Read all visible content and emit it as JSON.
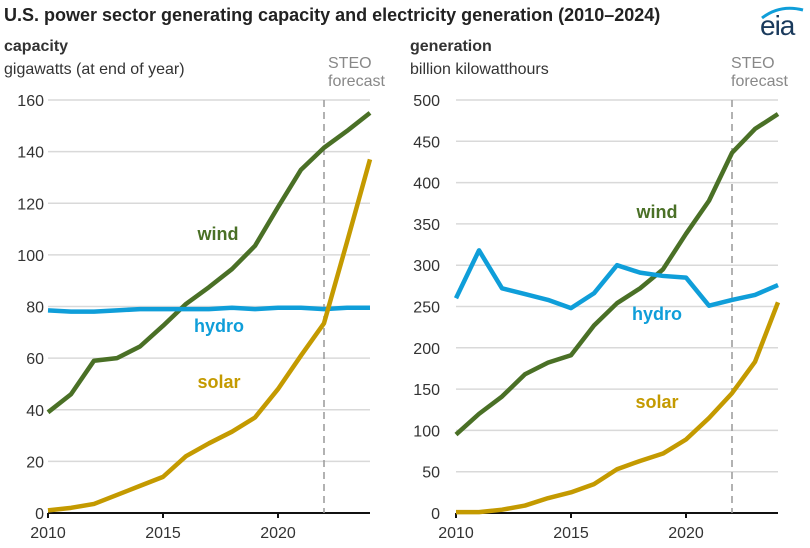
{
  "title": "U.S. power sector generating capacity and electricity generation (2010–2024)",
  "logo": "eia",
  "colors": {
    "wind": "#4a7026",
    "hydro": "#0f9ed9",
    "solar": "#c49a00",
    "grid": "#d9d9d9",
    "forecast": "#999999"
  },
  "chart_data": [
    {
      "type": "line",
      "heading": "capacity",
      "unit_label": "gigawatts (at end of year)",
      "forecast_label": [
        "STEO",
        "forecast"
      ],
      "forecast_start": 2022,
      "x": [
        2010,
        2011,
        2012,
        2013,
        2014,
        2015,
        2016,
        2017,
        2018,
        2019,
        2020,
        2021,
        2022,
        2023,
        2024
      ],
      "xticks": [
        "2010",
        "2015",
        "2020"
      ],
      "yticks": [
        "0",
        "20",
        "40",
        "60",
        "80",
        "100",
        "120",
        "140",
        "160"
      ],
      "ylim": [
        0,
        160
      ],
      "grid": true,
      "series": [
        {
          "name": "wind",
          "values": [
            39,
            46,
            59,
            60,
            64.5,
            72.5,
            81,
            87.5,
            94.5,
            103.5,
            118.5,
            133,
            141.5,
            148,
            155
          ]
        },
        {
          "name": "hydro",
          "values": [
            78.5,
            78,
            78,
            78.5,
            79,
            79,
            79,
            79,
            79.5,
            79,
            79.5,
            79.5,
            79,
            79.5,
            79.5
          ]
        },
        {
          "name": "solar",
          "values": [
            1,
            2,
            3.5,
            7,
            10.5,
            14,
            22,
            27,
            31.5,
            37,
            48,
            61,
            73.5,
            105,
            137
          ]
        }
      ]
    },
    {
      "type": "line",
      "heading": "generation",
      "unit_label": "billion kilowatthours",
      "forecast_label": [
        "STEO",
        "forecast"
      ],
      "forecast_start": 2022,
      "x": [
        2010,
        2011,
        2012,
        2013,
        2014,
        2015,
        2016,
        2017,
        2018,
        2019,
        2020,
        2021,
        2022,
        2023,
        2024
      ],
      "xticks": [
        "2010",
        "2015",
        "2020"
      ],
      "yticks": [
        "0",
        "50",
        "100",
        "150",
        "200",
        "250",
        "300",
        "350",
        "400",
        "450",
        "500"
      ],
      "ylim": [
        0,
        500
      ],
      "grid": true,
      "series": [
        {
          "name": "wind",
          "values": [
            95,
            120,
            141,
            168,
            182,
            191,
            227,
            254,
            272,
            295,
            338,
            378,
            436,
            465,
            483
          ]
        },
        {
          "name": "hydro",
          "values": [
            260,
            318,
            272,
            265,
            258,
            248,
            266,
            300,
            291,
            287,
            285,
            251,
            258,
            264,
            276
          ]
        },
        {
          "name": "solar",
          "values": [
            1,
            1,
            4,
            9,
            18,
            25,
            35,
            53,
            63,
            72,
            89,
            115,
            145,
            183,
            255
          ]
        }
      ]
    }
  ]
}
